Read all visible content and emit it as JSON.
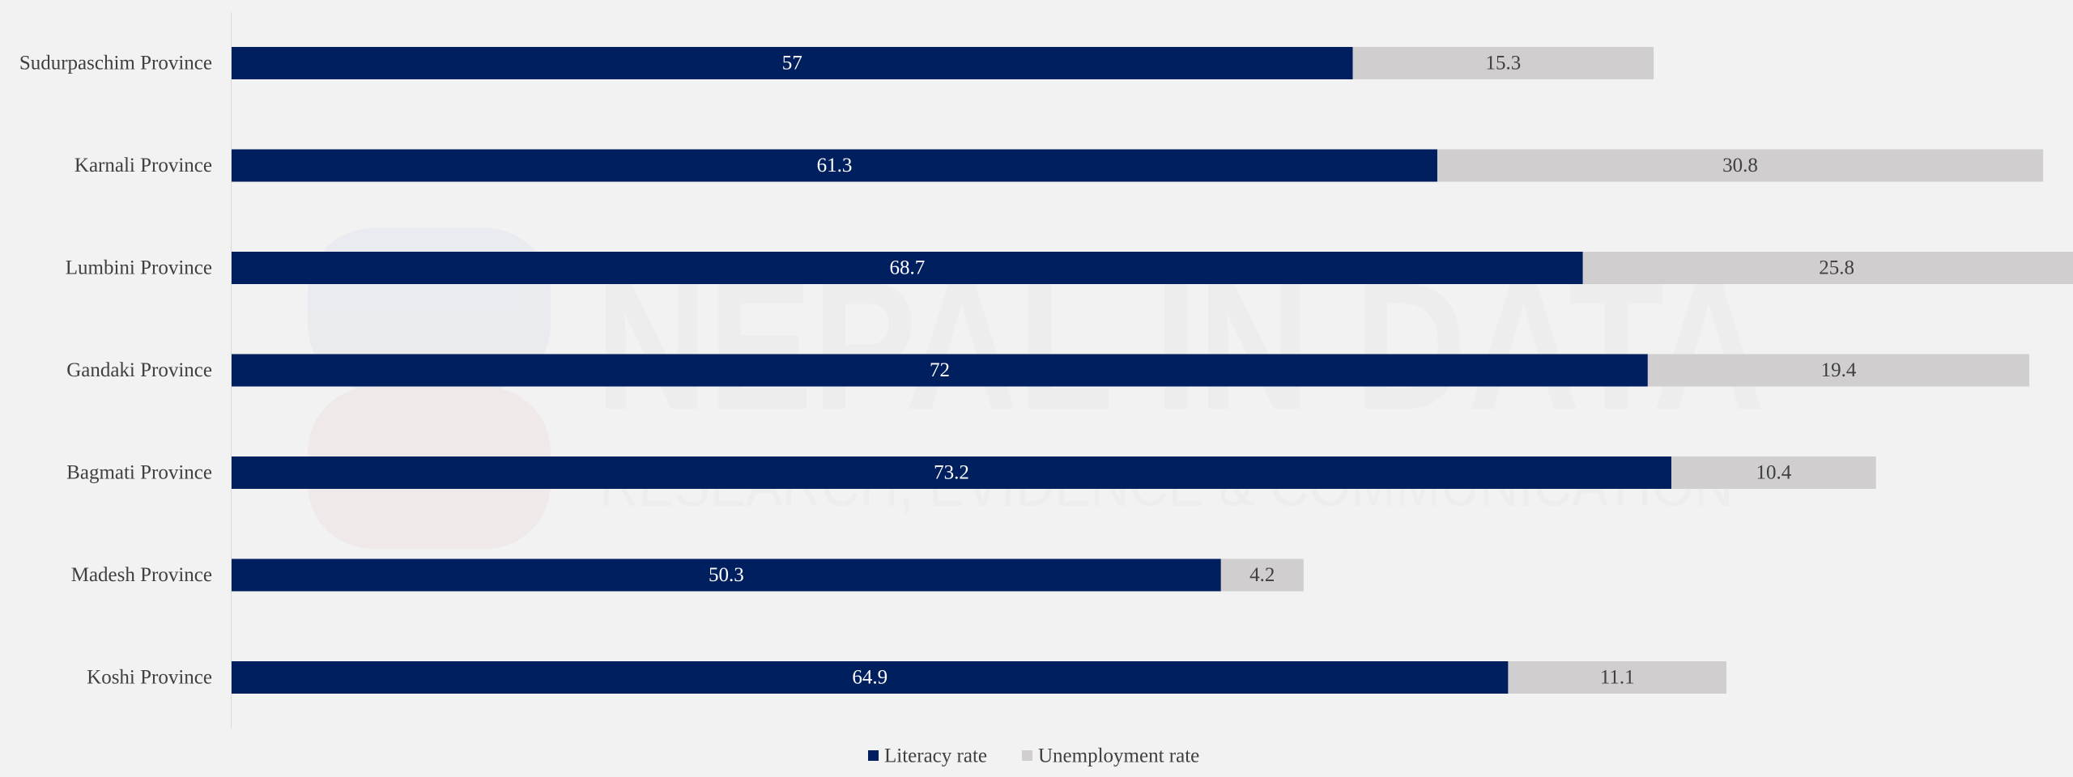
{
  "watermark": {
    "title": "NEPAL IN DATA",
    "subtitle": "RESEARCH, EVIDENCE & COMMUNICATION"
  },
  "chart_data": {
    "type": "bar",
    "orientation": "horizontal",
    "stacked": true,
    "categories": [
      "Koshi Province",
      "Madesh Province",
      "Bagmati Province",
      "Gandaki Province",
      "Lumbini Province",
      "Karnali Province",
      "Sudurpaschim Province"
    ],
    "series": [
      {
        "name": "Literacy rate",
        "color": "#001f5f",
        "label_color": "#ffffff",
        "values": [
          64.9,
          50.3,
          73.2,
          72,
          68.7,
          61.3,
          57
        ]
      },
      {
        "name": "Unemployment rate",
        "color": "#d0cece",
        "label_color": "#404040",
        "values": [
          11.1,
          4.2,
          10.4,
          19.4,
          25.8,
          30.8,
          15.3
        ]
      }
    ],
    "xlim": [
      0,
      100
    ],
    "x_axis_visible": false,
    "grid": false,
    "legend": "bottom",
    "title": "",
    "xlabel": "",
    "ylabel": ""
  }
}
